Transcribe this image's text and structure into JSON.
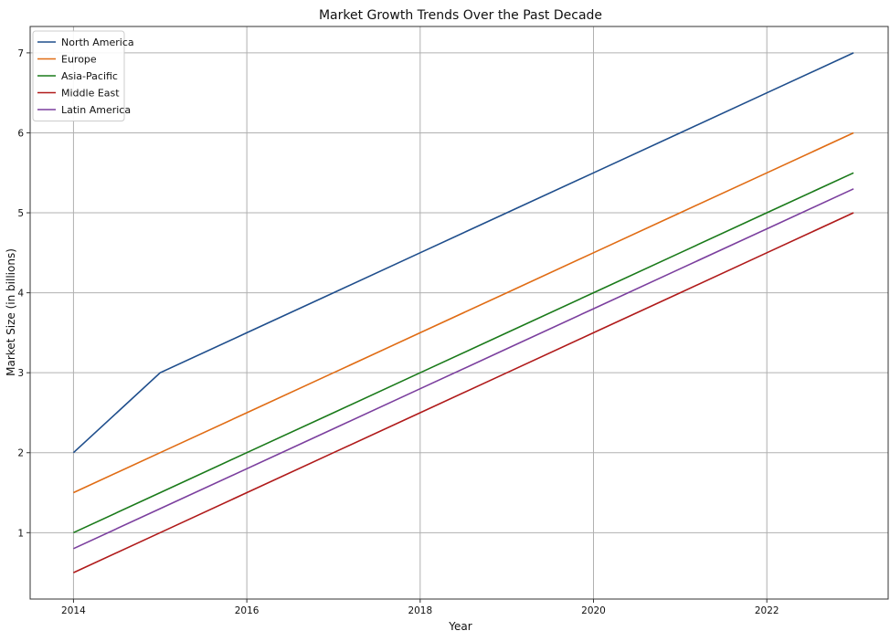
{
  "chart_data": {
    "type": "line",
    "title": "Market Growth Trends Over the Past Decade",
    "xlabel": "Year",
    "ylabel": "Market Size (in billions)",
    "x": [
      2014,
      2015,
      2016,
      2017,
      2018,
      2019,
      2020,
      2021,
      2022,
      2023
    ],
    "xlim": [
      2013.5,
      2023.4
    ],
    "ylim": [
      0.17,
      7.33
    ],
    "xticks": [
      2014,
      2016,
      2018,
      2020,
      2022
    ],
    "yticks": [
      1,
      2,
      3,
      4,
      5,
      6,
      7
    ],
    "grid": true,
    "legend_position": "top-left",
    "series": [
      {
        "name": "North America",
        "color": "#1f4e8c",
        "values": [
          2.0,
          3.0,
          3.5,
          4.0,
          4.5,
          5.0,
          5.5,
          6.0,
          6.5,
          7.0
        ]
      },
      {
        "name": "Europe",
        "color": "#e06c14",
        "values": [
          1.5,
          2.0,
          2.5,
          3.0,
          3.5,
          4.0,
          4.5,
          5.0,
          5.5,
          6.0
        ]
      },
      {
        "name": "Asia-Pacific",
        "color": "#1a7a1a",
        "values": [
          1.0,
          1.5,
          2.0,
          2.5,
          3.0,
          3.5,
          4.0,
          4.5,
          5.0,
          5.5
        ]
      },
      {
        "name": "Middle East",
        "color": "#b01a1a",
        "values": [
          0.5,
          1.0,
          1.5,
          2.0,
          2.5,
          3.0,
          3.5,
          4.0,
          4.5,
          5.0
        ]
      },
      {
        "name": "Latin America",
        "color": "#7b3f9e",
        "values": [
          0.8,
          1.3,
          1.8,
          2.3,
          2.8,
          3.3,
          3.8,
          4.3,
          4.8,
          5.3
        ]
      }
    ]
  }
}
